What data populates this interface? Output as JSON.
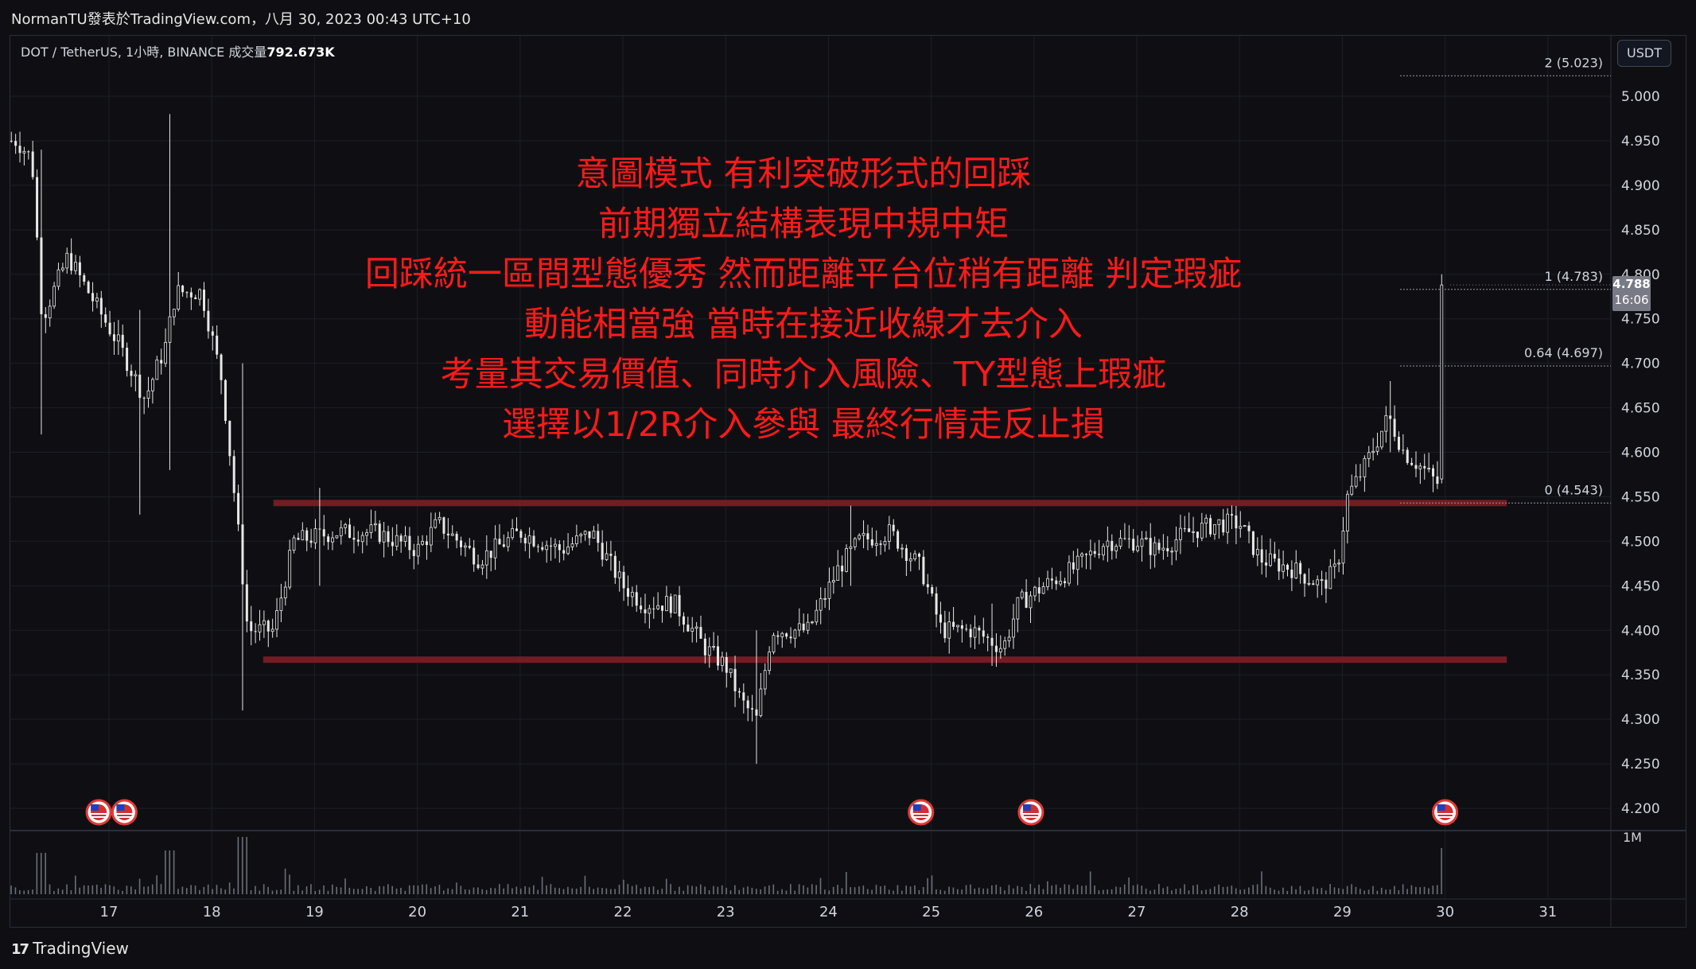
{
  "header": {
    "title": "NormanTU發表於TradingView.com，八月 30, 2023 00:43 UTC+10"
  },
  "symbol_bar": {
    "text": "DOT / TetherUS, 1小時, BINANCE  成交量",
    "volume": "792.673K"
  },
  "currency_button": "USDT",
  "price_tag": {
    "price": "4.788",
    "countdown": "16:06"
  },
  "annotation": {
    "lines": [
      "意圖模式 有利突破形式的回踩",
      "前期獨立結構表現中規中矩",
      "回踩統一區間型態優秀 然而距離平台位稍有距離 判定瑕疵",
      "動能相當強 當時在接近收線才去介入",
      "考量其交易價值、同時介入風險、TY型態上瑕疵",
      "選擇以1/2R介入參與 最終行情走反止損"
    ]
  },
  "footer": {
    "brand": "TradingView",
    "logo_glyph": "17"
  },
  "event_icon_name": "us-flag-economic-event-icon",
  "colors": {
    "background": "#0f0f13",
    "candle": "#e8e8e8",
    "zone": "#7a1c24",
    "annotation": "#ff1a1a",
    "grid": "#1c1f26",
    "fib": "#9598a1"
  },
  "chart_data": {
    "type": "candlestick",
    "x_ticks": [
      "17",
      "18",
      "19",
      "20",
      "21",
      "22",
      "23",
      "24",
      "25",
      "26",
      "27",
      "28",
      "29",
      "30",
      "31"
    ],
    "y_ticks": [
      "5.000",
      "4.950",
      "4.900",
      "4.850",
      "4.800",
      "4.750",
      "4.700",
      "4.650",
      "4.600",
      "4.550",
      "4.500",
      "4.450",
      "4.400",
      "4.350",
      "4.300",
      "4.250",
      "4.200"
    ],
    "ylim": [
      4.17,
      5.05
    ],
    "volume_label": "1M",
    "fib_levels": [
      {
        "label": "2 (5.023)",
        "value": 5.023
      },
      {
        "label": "1 (4.783)",
        "value": 4.783
      },
      {
        "label": "0.64 (4.697)",
        "value": 4.697
      },
      {
        "label": "0 (4.543)",
        "value": 4.543
      }
    ],
    "zones": [
      {
        "value": 4.543,
        "from_day": 18.6,
        "to_day": 30.6
      },
      {
        "value": 4.367,
        "from_day": 18.5,
        "to_day": 30.6
      }
    ],
    "event_days": [
      16.9,
      17.15,
      24.9,
      25.97,
      30.0
    ],
    "close_anchors": [
      [
        16.1,
        4.95
      ],
      [
        16.25,
        4.93
      ],
      [
        16.35,
        4.75
      ],
      [
        16.6,
        4.82
      ],
      [
        16.85,
        4.77
      ],
      [
        17.1,
        4.72
      ],
      [
        17.35,
        4.66
      ],
      [
        17.55,
        4.72
      ],
      [
        17.65,
        4.78
      ],
      [
        17.9,
        4.78
      ],
      [
        18.1,
        4.68
      ],
      [
        18.25,
        4.52
      ],
      [
        18.35,
        4.4
      ],
      [
        18.6,
        4.4
      ],
      [
        18.8,
        4.5
      ],
      [
        19.2,
        4.51
      ],
      [
        19.6,
        4.51
      ],
      [
        20.0,
        4.49
      ],
      [
        20.2,
        4.52
      ],
      [
        20.6,
        4.48
      ],
      [
        21.0,
        4.51
      ],
      [
        21.4,
        4.49
      ],
      [
        21.7,
        4.51
      ],
      [
        22.0,
        4.45
      ],
      [
        22.2,
        4.43
      ],
      [
        22.5,
        4.43
      ],
      [
        22.8,
        4.38
      ],
      [
        23.0,
        4.36
      ],
      [
        23.15,
        4.32
      ],
      [
        23.3,
        4.3
      ],
      [
        23.45,
        4.4
      ],
      [
        23.8,
        4.4
      ],
      [
        24.1,
        4.47
      ],
      [
        24.3,
        4.5
      ],
      [
        24.6,
        4.51
      ],
      [
        24.9,
        4.47
      ],
      [
        25.1,
        4.4
      ],
      [
        25.4,
        4.4
      ],
      [
        25.7,
        4.38
      ],
      [
        25.85,
        4.43
      ],
      [
        26.1,
        4.45
      ],
      [
        26.4,
        4.47
      ],
      [
        26.7,
        4.5
      ],
      [
        27.0,
        4.5
      ],
      [
        27.2,
        4.49
      ],
      [
        27.5,
        4.51
      ],
      [
        27.8,
        4.52
      ],
      [
        28.0,
        4.52
      ],
      [
        28.2,
        4.48
      ],
      [
        28.5,
        4.47
      ],
      [
        28.8,
        4.45
      ],
      [
        28.95,
        4.47
      ],
      [
        29.05,
        4.55
      ],
      [
        29.2,
        4.58
      ],
      [
        29.45,
        4.64
      ],
      [
        29.6,
        4.6
      ],
      [
        29.8,
        4.58
      ],
      [
        29.92,
        4.565
      ],
      [
        30.0,
        4.57
      ],
      [
        30.05,
        4.788
      ]
    ]
  }
}
